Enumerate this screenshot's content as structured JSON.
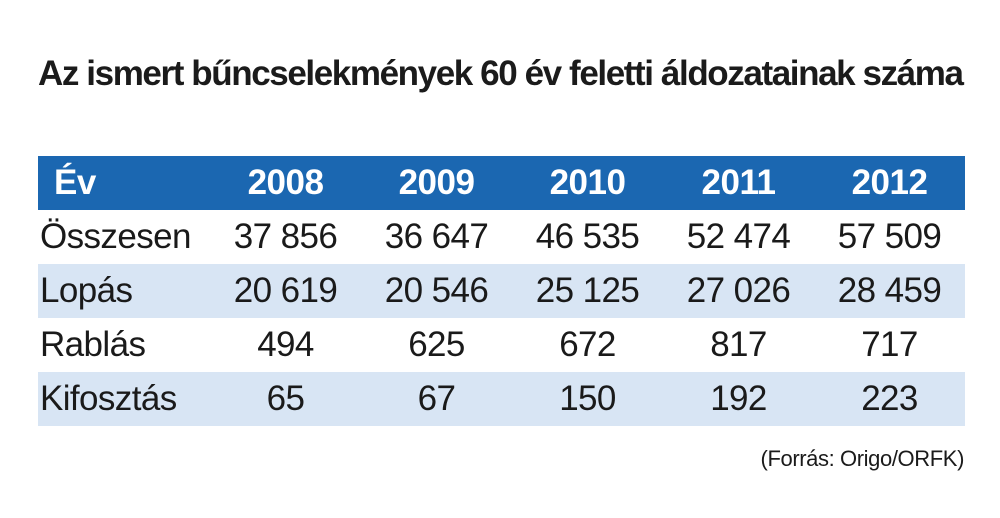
{
  "chart_data": {
    "type": "table",
    "title": "Az ismert bűncselekmények 60 év feletti áldozatainak száma",
    "row_header": "Év",
    "columns": [
      "2008",
      "2009",
      "2010",
      "2011",
      "2012"
    ],
    "rows": [
      {
        "label": "Összesen",
        "values": [
          "37 856",
          "36 647",
          "46 535",
          "52 474",
          "57 509"
        ]
      },
      {
        "label": "Lopás",
        "values": [
          "20 619",
          "20 546",
          "25 125",
          "27 026",
          "28 459"
        ]
      },
      {
        "label": "Rablás",
        "values": [
          "494",
          "625",
          "672",
          "817",
          "717"
        ]
      },
      {
        "label": "Kifosztás",
        "values": [
          "65",
          "67",
          "150",
          "192",
          "223"
        ]
      }
    ],
    "source": "(Forrás: Origo/ORFK)",
    "colors": {
      "header_background": "#1b67b1",
      "header_text": "#ffffff",
      "stripe": "#d8e5f4"
    }
  }
}
